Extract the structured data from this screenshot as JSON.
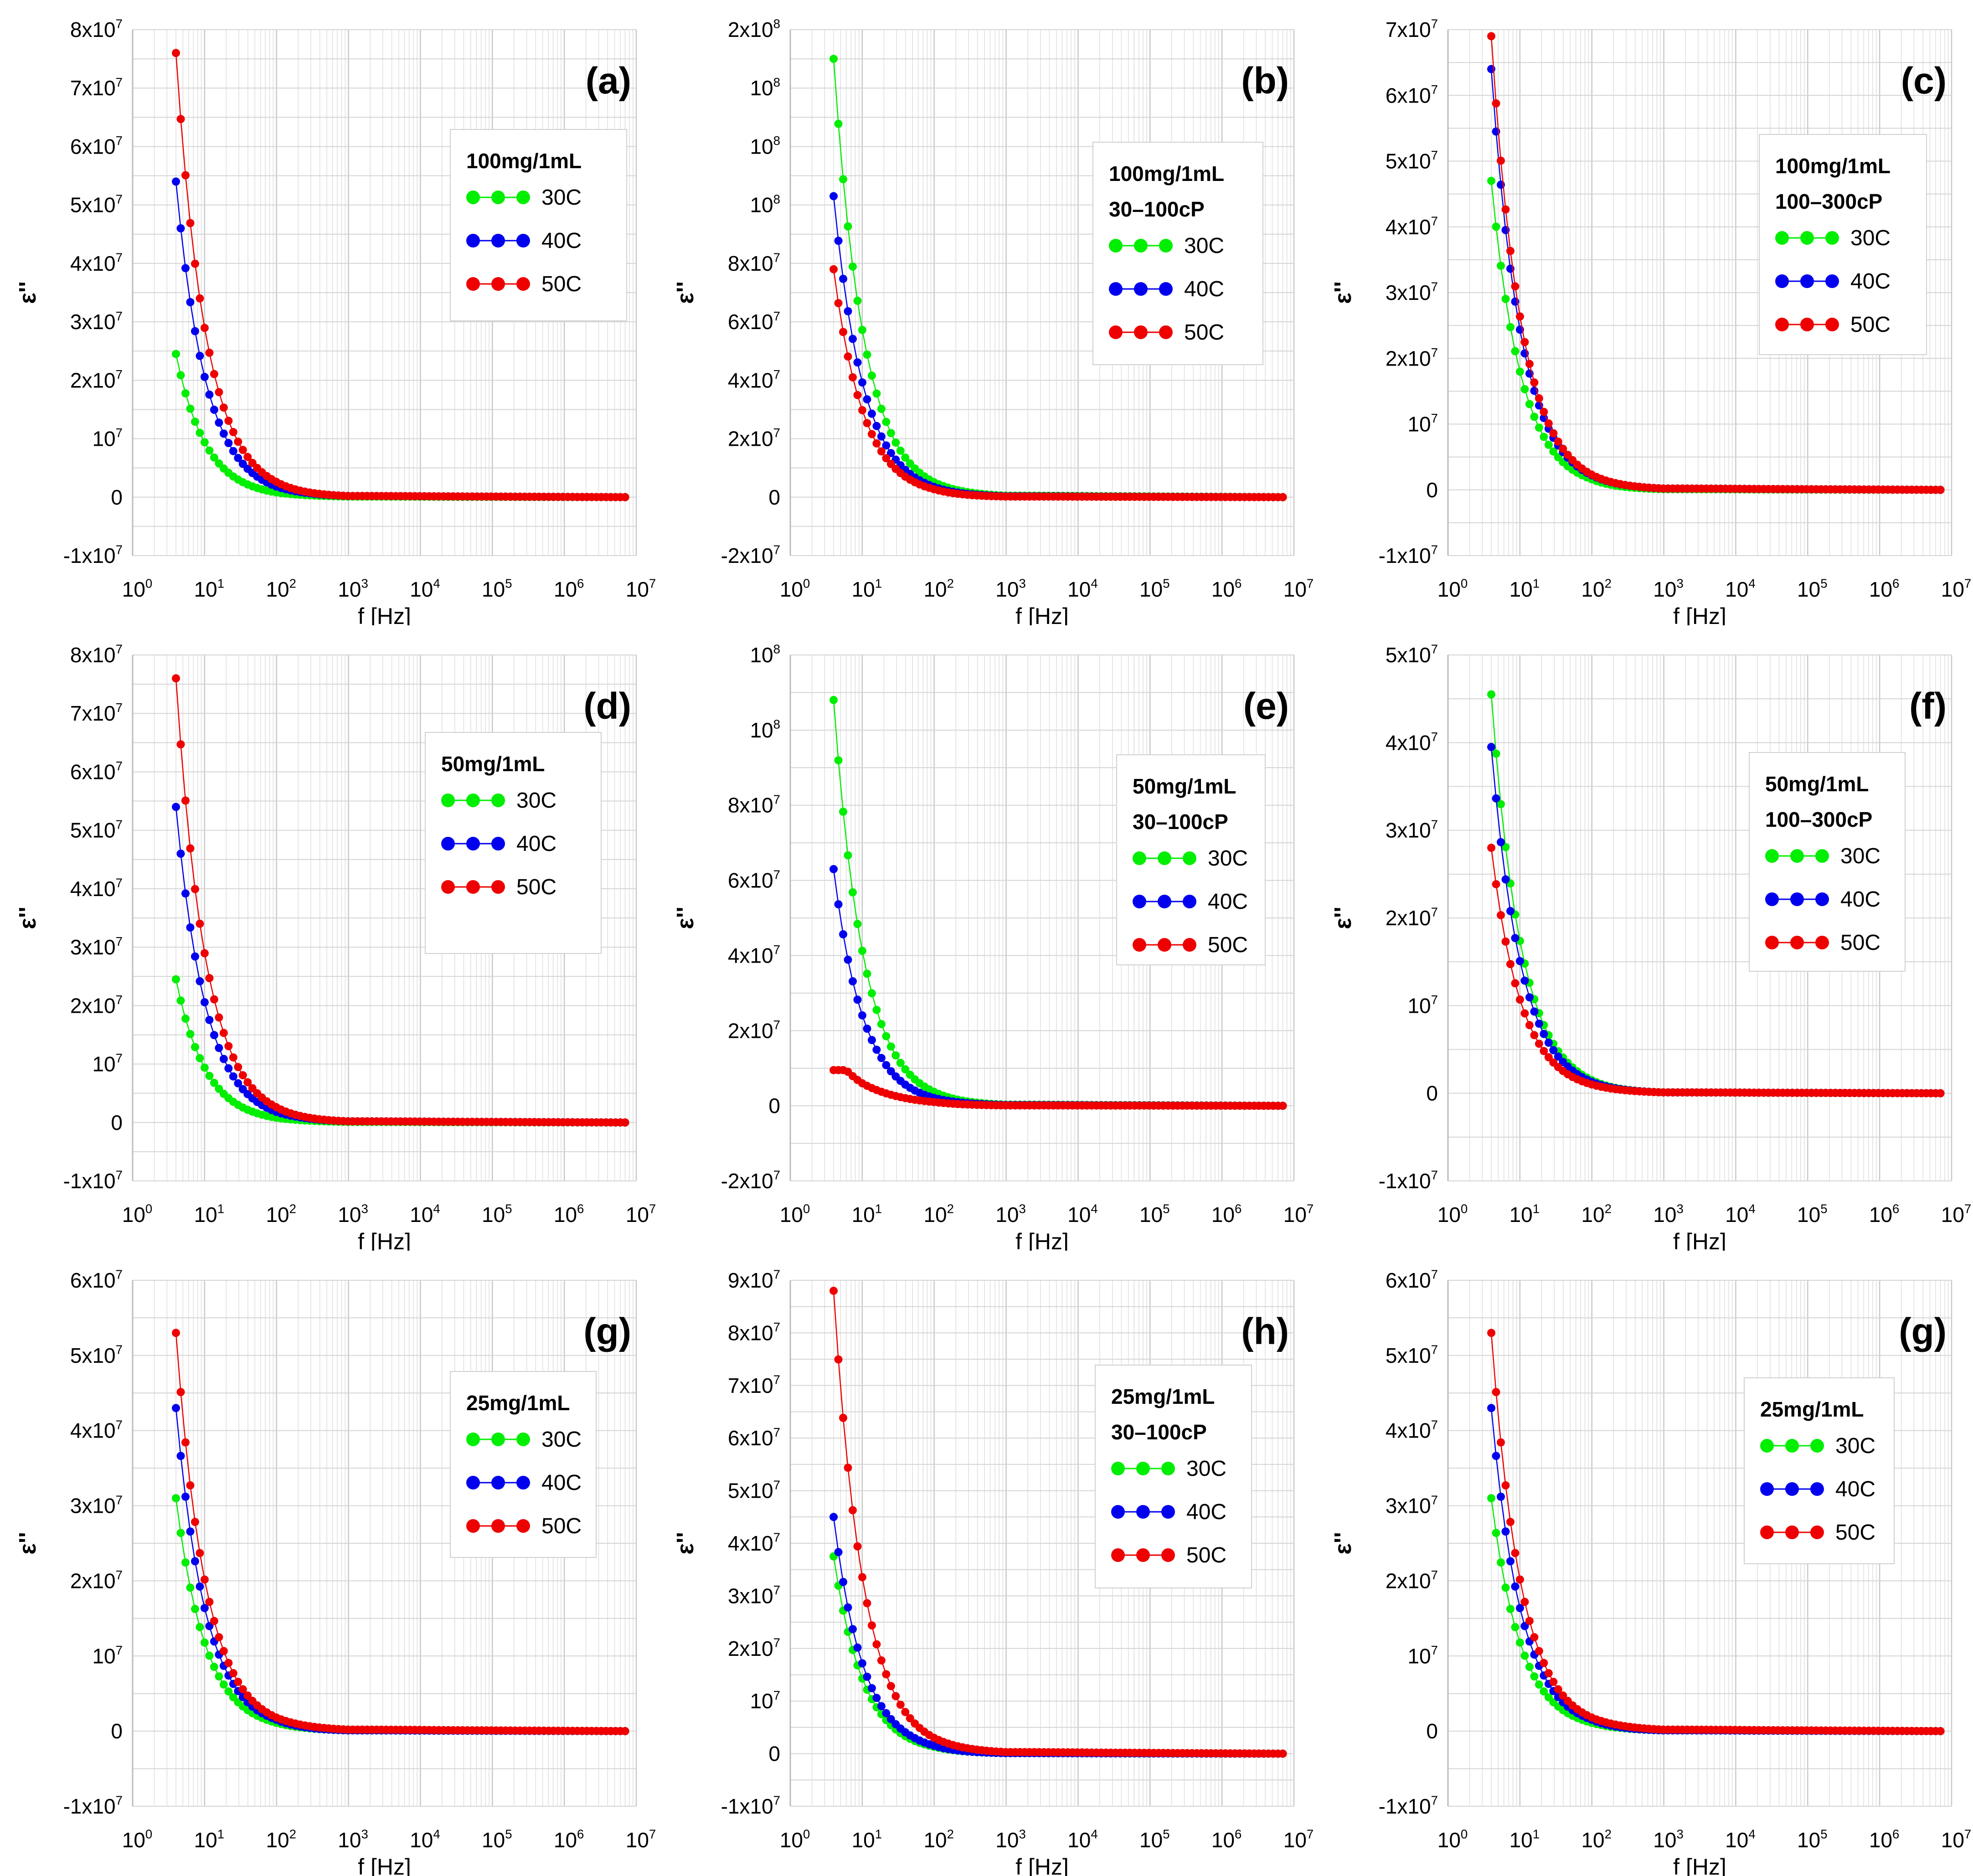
{
  "chart_data": [
    {
      "type": "scatter",
      "panel_label": "(a)",
      "legend_title": [
        "100mg/1mL"
      ],
      "xlabel": "f [Hz]",
      "ylabel": "ε''",
      "xscale": "log",
      "xlim": [
        1,
        10000000
      ],
      "xticks": [
        "10^0",
        "10^1",
        "10^2",
        "10^3",
        "10^4",
        "10^5",
        "10^6",
        "10^7"
      ],
      "ylim": [
        -10000000,
        80000000
      ],
      "ystep": 10000000,
      "yticklabels": [
        "-1x10^7",
        "0",
        "10^7",
        "2x10^7",
        "3x10^7",
        "4x10^7",
        "5x10^7",
        "6x10^7",
        "7x10^7",
        "8x10^7"
      ],
      "x": [
        4,
        6,
        10,
        20,
        50,
        100,
        1000,
        7000000
      ],
      "y_scale": 10000000,
      "series": [
        {
          "name": "30C",
          "color": "#00ee00",
          "values": [
            2.45,
            1.6,
            0.94,
            0.45,
            0.17,
            0.08,
            0.01,
            0
          ]
        },
        {
          "name": "40C",
          "color": "#0000ee",
          "values": [
            5.4,
            3.53,
            2.06,
            1.0,
            0.38,
            0.18,
            0.02,
            0
          ]
        },
        {
          "name": "50C",
          "color": "#ee0000",
          "values": [
            7.6,
            4.96,
            2.9,
            1.41,
            0.54,
            0.26,
            0.02,
            0
          ]
        }
      ]
    },
    {
      "type": "scatter",
      "panel_label": "(b)",
      "legend_title": [
        "100mg/1mL",
        "30–100cP"
      ],
      "xlabel": "f [Hz]",
      "ylabel": "ε''",
      "xscale": "log",
      "xlim": [
        1,
        10000000
      ],
      "xticks": [
        "10^0",
        "10^1",
        "10^2",
        "10^3",
        "10^4",
        "10^5",
        "10^6",
        "10^7"
      ],
      "ylim": [
        -20000000,
        160000000
      ],
      "ystep": 20000000,
      "yticklabels": [
        "-2x10^7",
        "0",
        "2x10^7",
        "4x10^7",
        "6x10^7",
        "8x10^7",
        "10^8",
        "10^8",
        "10^8",
        "2x10^8"
      ],
      "x": [
        4,
        6,
        10,
        20,
        50,
        100,
        1000,
        7000000
      ],
      "y_scale": 10000000,
      "series": [
        {
          "name": "30C",
          "color": "#00ee00",
          "values": [
            15,
            9.8,
            5.73,
            2.78,
            1.06,
            0.51,
            0.05,
            0
          ]
        },
        {
          "name": "40C",
          "color": "#0000ee",
          "values": [
            10.3,
            6.73,
            3.93,
            1.91,
            0.73,
            0.35,
            0.03,
            0
          ]
        },
        {
          "name": "50C",
          "color": "#ee0000",
          "values": [
            7.8,
            5.09,
            2.98,
            1.44,
            0.55,
            0.27,
            0.02,
            0
          ]
        }
      ]
    },
    {
      "type": "scatter",
      "panel_label": "(c)",
      "legend_title": [
        "100mg/1mL",
        "100–300cP"
      ],
      "xlabel": "f [Hz]",
      "ylabel": "ε''",
      "xscale": "log",
      "xlim": [
        1,
        10000000
      ],
      "xticks": [
        "10^0",
        "10^1",
        "10^2",
        "10^3",
        "10^4",
        "10^5",
        "10^6",
        "10^7"
      ],
      "ylim": [
        -10000000,
        70000000
      ],
      "ystep": 10000000,
      "yticklabels": [
        "-1x10^7",
        "0",
        "10^7",
        "2x10^7",
        "3x10^7",
        "4x10^7",
        "5x10^7",
        "6x10^7",
        "7x10^7"
      ],
      "x": [
        4,
        6,
        10,
        20,
        50,
        100,
        1000,
        7000000
      ],
      "y_scale": 10000000,
      "series": [
        {
          "name": "30C",
          "color": "#00ee00",
          "values": [
            4.7,
            3.07,
            1.8,
            0.87,
            0.33,
            0.16,
            0.01,
            0
          ]
        },
        {
          "name": "40C",
          "color": "#0000ee",
          "values": [
            6.4,
            4.18,
            2.44,
            1.18,
            0.45,
            0.22,
            0.02,
            0
          ]
        },
        {
          "name": "50C",
          "color": "#ee0000",
          "values": [
            6.9,
            4.51,
            2.64,
            1.28,
            0.49,
            0.23,
            0.02,
            0
          ]
        }
      ]
    },
    {
      "type": "scatter",
      "panel_label": "(d)",
      "legend_title": [
        "50mg/1mL"
      ],
      "xlabel": "f [Hz]",
      "ylabel": "ε''",
      "xscale": "log",
      "xlim": [
        1,
        10000000
      ],
      "xticks": [
        "10^0",
        "10^1",
        "10^2",
        "10^3",
        "10^4",
        "10^5",
        "10^6",
        "10^7"
      ],
      "ylim": [
        -10000000,
        80000000
      ],
      "ystep": 10000000,
      "yticklabels": [
        "-1x10^7",
        "0",
        "10^7",
        "2x10^7",
        "3x10^7",
        "4x10^7",
        "5x10^7",
        "6x10^7",
        "7x10^7",
        "8x10^7"
      ],
      "x": [
        4,
        6,
        10,
        20,
        50,
        100,
        1000,
        7000000
      ],
      "y_scale": 10000000,
      "series": [
        {
          "name": "30C",
          "color": "#00ee00",
          "values": [
            2.45,
            1.6,
            0.94,
            0.45,
            0.17,
            0.08,
            0.01,
            0
          ]
        },
        {
          "name": "40C",
          "color": "#0000ee",
          "values": [
            5.4,
            3.53,
            2.06,
            1.0,
            0.38,
            0.18,
            0.02,
            0
          ]
        },
        {
          "name": "50C",
          "color": "#ee0000",
          "values": [
            7.6,
            4.96,
            2.9,
            1.41,
            0.54,
            0.26,
            0.02,
            0
          ]
        }
      ]
    },
    {
      "type": "scatter",
      "panel_label": "(e)",
      "legend_title": [
        "50mg/1mL",
        "30–100cP"
      ],
      "xlabel": "f [Hz]",
      "ylabel": "ε''",
      "xscale": "log",
      "xlim": [
        1,
        10000000
      ],
      "xticks": [
        "10^0",
        "10^1",
        "10^2",
        "10^3",
        "10^4",
        "10^5",
        "10^6",
        "10^7"
      ],
      "ylim": [
        -20000000,
        120000000
      ],
      "ystep": 20000000,
      "yticklabels": [
        "-2x10^7",
        "0",
        "2x10^7",
        "4x10^7",
        "6x10^7",
        "8x10^7",
        "10^8",
        "10^8"
      ],
      "x": [
        4,
        6,
        10,
        20,
        50,
        100,
        1000,
        7000000
      ],
      "y_scale": 10000000,
      "series": [
        {
          "name": "30C",
          "color": "#00ee00",
          "values": [
            10.8,
            7.05,
            4.13,
            2.0,
            0.76,
            0.37,
            0.03,
            0
          ]
        },
        {
          "name": "40C",
          "color": "#0000ee",
          "values": [
            6.3,
            4.11,
            2.41,
            1.17,
            0.44,
            0.21,
            0.02,
            0
          ]
        },
        {
          "name": "50C",
          "color": "#ee0000",
          "values": [
            0.95,
            0.95,
            0.6,
            0.35,
            0.17,
            0.1,
            0.01,
            0
          ]
        }
      ]
    },
    {
      "type": "scatter",
      "panel_label": "(f)",
      "legend_title": [
        "50mg/1mL",
        "100–300cP"
      ],
      "xlabel": "f [Hz]",
      "ylabel": "ε''",
      "xscale": "log",
      "xlim": [
        1,
        10000000
      ],
      "xticks": [
        "10^0",
        "10^1",
        "10^2",
        "10^3",
        "10^4",
        "10^5",
        "10^6",
        "10^7"
      ],
      "ylim": [
        -10000000,
        50000000
      ],
      "ystep": 10000000,
      "yticklabels": [
        "-1x10^7",
        "0",
        "10^7",
        "2x10^7",
        "3x10^7",
        "4x10^7",
        "5x10^7"
      ],
      "x": [
        4,
        6,
        10,
        20,
        50,
        100,
        1000,
        7000000
      ],
      "y_scale": 10000000,
      "series": [
        {
          "name": "30C",
          "color": "#00ee00",
          "values": [
            4.55,
            2.97,
            1.74,
            0.84,
            0.32,
            0.15,
            0.01,
            0
          ]
        },
        {
          "name": "40C",
          "color": "#0000ee",
          "values": [
            3.95,
            2.58,
            1.51,
            0.73,
            0.28,
            0.13,
            0.01,
            0
          ]
        },
        {
          "name": "50C",
          "color": "#ee0000",
          "values": [
            2.8,
            1.83,
            1.07,
            0.52,
            0.2,
            0.1,
            0.01,
            0
          ]
        }
      ]
    },
    {
      "type": "scatter",
      "panel_label": "(g)",
      "legend_title": [
        "25mg/1mL"
      ],
      "xlabel": "f [Hz]",
      "ylabel": "ε''",
      "xscale": "log",
      "xlim": [
        1,
        10000000
      ],
      "xticks": [
        "10^0",
        "10^1",
        "10^2",
        "10^3",
        "10^4",
        "10^5",
        "10^6",
        "10^7"
      ],
      "ylim": [
        -10000000,
        60000000
      ],
      "ystep": 10000000,
      "yticklabels": [
        "-1x10^7",
        "0",
        "10^7",
        "2x10^7",
        "3x10^7",
        "4x10^7",
        "5x10^7",
        "6x10^7"
      ],
      "x": [
        4,
        6,
        10,
        20,
        50,
        100,
        1000,
        7000000
      ],
      "y_scale": 10000000,
      "series": [
        {
          "name": "30C",
          "color": "#00ee00",
          "values": [
            3.1,
            2.02,
            1.18,
            0.57,
            0.22,
            0.11,
            0.01,
            0
          ]
        },
        {
          "name": "40C",
          "color": "#0000ee",
          "values": [
            4.3,
            2.81,
            1.64,
            0.8,
            0.3,
            0.15,
            0.01,
            0
          ]
        },
        {
          "name": "50C",
          "color": "#ee0000",
          "values": [
            5.3,
            3.46,
            2.02,
            0.98,
            0.37,
            0.18,
            0.02,
            0
          ]
        }
      ]
    },
    {
      "type": "scatter",
      "panel_label": "(h)",
      "legend_title": [
        "25mg/1mL",
        "30–100cP"
      ],
      "xlabel": "f [Hz]",
      "ylabel": "ε''",
      "xscale": "log",
      "xlim": [
        1,
        10000000
      ],
      "xticks": [
        "10^0",
        "10^1",
        "10^2",
        "10^3",
        "10^4",
        "10^5",
        "10^6",
        "10^7"
      ],
      "ylim": [
        -10000000,
        90000000
      ],
      "ystep": 10000000,
      "yticklabels": [
        "-1x10^7",
        "0",
        "10^7",
        "2x10^7",
        "3x10^7",
        "4x10^7",
        "5x10^7",
        "6x10^7",
        "7x10^7",
        "8x10^7",
        "9x10^7"
      ],
      "x": [
        4,
        6,
        10,
        20,
        50,
        100,
        1000,
        7000000
      ],
      "y_scale": 10000000,
      "series": [
        {
          "name": "30C",
          "color": "#00ee00",
          "values": [
            3.75,
            2.45,
            1.43,
            0.69,
            0.26,
            0.13,
            0.01,
            0
          ]
        },
        {
          "name": "40C",
          "color": "#0000ee",
          "values": [
            4.5,
            2.94,
            1.72,
            0.83,
            0.32,
            0.15,
            0.01,
            0
          ]
        },
        {
          "name": "50C",
          "color": "#ee0000",
          "values": [
            8.8,
            5.75,
            3.36,
            1.63,
            0.62,
            0.3,
            0.03,
            0
          ]
        }
      ]
    },
    {
      "type": "scatter",
      "panel_label": "(g)",
      "legend_title": [
        "25mg/1mL"
      ],
      "xlabel": "f [Hz]",
      "ylabel": "ε''",
      "xscale": "log",
      "xlim": [
        1,
        10000000
      ],
      "xticks": [
        "10^0",
        "10^1",
        "10^2",
        "10^3",
        "10^4",
        "10^5",
        "10^6",
        "10^7"
      ],
      "ylim": [
        -10000000,
        60000000
      ],
      "ystep": 10000000,
      "yticklabels": [
        "-1x10^7",
        "0",
        "10^7",
        "2x10^7",
        "3x10^7",
        "4x10^7",
        "5x10^7",
        "6x10^7"
      ],
      "x": [
        4,
        6,
        10,
        20,
        50,
        100,
        1000,
        7000000
      ],
      "y_scale": 10000000,
      "series": [
        {
          "name": "30C",
          "color": "#00ee00",
          "values": [
            3.1,
            2.02,
            1.18,
            0.57,
            0.22,
            0.11,
            0.01,
            0
          ]
        },
        {
          "name": "40C",
          "color": "#0000ee",
          "values": [
            4.3,
            2.81,
            1.64,
            0.8,
            0.3,
            0.15,
            0.01,
            0
          ]
        },
        {
          "name": "50C",
          "color": "#ee0000",
          "values": [
            5.3,
            3.46,
            2.02,
            0.98,
            0.37,
            0.18,
            0.02,
            0
          ]
        }
      ]
    }
  ]
}
